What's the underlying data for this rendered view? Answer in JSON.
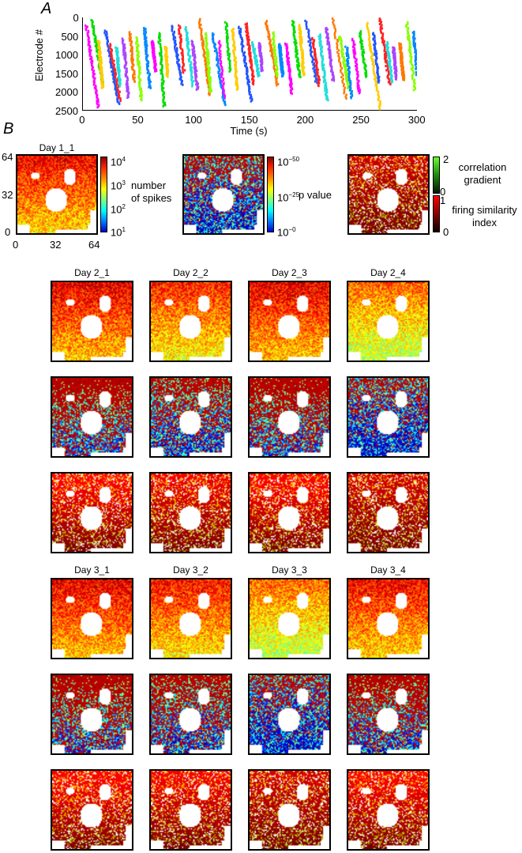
{
  "panel_a": {
    "label": "A",
    "chart_data": {
      "type": "scatter",
      "title": "",
      "xlabel": "Time (s)",
      "ylabel": "Electrode #",
      "xlim": [
        0,
        300
      ],
      "ylim": [
        2500,
        0
      ],
      "x_ticks": [
        "0",
        "50",
        "100",
        "150",
        "200",
        "250",
        "300"
      ],
      "y_ticks": [
        "0",
        "500",
        "1000",
        "1500",
        "2000",
        "2500"
      ],
      "grid": false,
      "legend": "none",
      "description_colors": [
        "#ff00ff",
        "#00dd00",
        "#ffcc00",
        "#2255ff",
        "#ff2222",
        "#22dddd",
        "#aa44ff",
        "#ff7700",
        "#88ff00",
        "#0088ff"
      ],
      "burst_times_s": [
        3,
        8,
        14,
        20,
        24,
        30,
        36,
        42,
        48,
        55,
        62,
        68,
        74,
        80,
        86,
        92,
        98,
        104,
        110,
        116,
        122,
        128,
        134,
        140,
        146,
        152,
        158,
        164,
        170,
        176,
        182,
        188,
        194,
        200,
        206,
        212,
        218,
        224,
        230,
        236,
        242,
        248,
        254,
        260,
        266,
        272,
        278,
        284,
        290,
        296
      ]
    }
  },
  "panel_b": {
    "label": "B",
    "day1": {
      "title": "Day 1_1",
      "y_ticks": [
        "64",
        "32",
        "0"
      ],
      "x_ticks": [
        "0",
        "32",
        "64"
      ]
    },
    "colorbar_spikes": {
      "ticks": [
        "10",
        "10",
        "10",
        "10"
      ],
      "exponents": [
        "4",
        "3",
        "2",
        "1"
      ],
      "label_line1": "number",
      "label_line2": "of spikes"
    },
    "colorbar_p": {
      "ticks": [
        "10",
        "10",
        "10"
      ],
      "exponents": [
        "−50",
        "−25",
        "−0"
      ],
      "label": "p value"
    },
    "colorbar_corr": {
      "green_ticks": [
        "2",
        "0"
      ],
      "red_ticks": [
        "1",
        "0"
      ],
      "green_label_line1": "correlation",
      "green_label_line2": "gradient",
      "red_label_line1": "firing similarity",
      "red_label_line2": "index"
    },
    "day2_titles": [
      "Day 2_1",
      "Day 2_2",
      "Day 2_3",
      "Day 2_4"
    ],
    "day3_titles": [
      "Day 3_1",
      "Day 3_2",
      "Day 3_3",
      "Day 3_4"
    ],
    "colors": {
      "jet_low": "#1e3cd2",
      "jet_high": "#b40000",
      "corr_green": "#44ee22",
      "corr_red": "#e60000"
    }
  }
}
